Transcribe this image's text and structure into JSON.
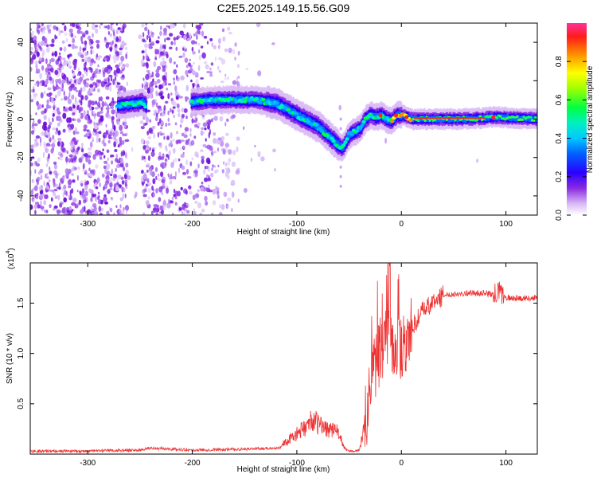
{
  "title": "C2E5.2025.149.15.56.G09",
  "colors": {
    "snr_line": "#ee3333",
    "axis": "#000000"
  },
  "chart_data": [
    {
      "type": "heatmap",
      "xlabel": "Height of straight line (km)",
      "ylabel": "Frequency (Hz)",
      "xlim": [
        -355,
        130
      ],
      "ylim": [
        -50,
        50
      ],
      "x_ticks": [
        -300,
        -200,
        -100,
        0,
        100
      ],
      "x_tick_labels": [
        "-300",
        "-200",
        "-100",
        "0",
        "100"
      ],
      "y_ticks": [
        -40,
        -20,
        0,
        20,
        40
      ],
      "y_tick_labels": [
        "-40",
        "-20",
        "0",
        "20",
        "40"
      ],
      "colorbar": {
        "label": "Normalized spectral amplitude",
        "range": [
          0.0,
          1.0
        ],
        "ticks": [
          0.0,
          0.2,
          0.4,
          0.6,
          0.8
        ],
        "tick_labels": [
          "0.0",
          "0.2",
          "0.4",
          "0.6",
          "0.8"
        ]
      },
      "ridge": {
        "x": [
          -272,
          -255,
          -248,
          -242,
          -200,
          -180,
          -160,
          -140,
          -120,
          -100,
          -80,
          -70,
          -60,
          -57,
          -50,
          -40,
          -35,
          -30,
          -25,
          -20,
          -15,
          -10,
          -5,
          0,
          10,
          30,
          60,
          90,
          130
        ],
        "y": [
          7,
          8,
          9,
          5,
          9,
          10,
          10,
          10,
          8,
          2,
          -4,
          -9,
          -14,
          -15,
          -8,
          -5,
          0,
          2,
          1,
          2,
          0,
          -1,
          2,
          2,
          0,
          0,
          0,
          1,
          0
        ]
      }
    },
    {
      "type": "line",
      "xlabel": "Height of straight line (km)",
      "ylabel": "SNR (10 * v/v)",
      "scale_label": "(x10",
      "scale_exp": "4",
      "xlim": [
        -355,
        130
      ],
      "ylim": [
        0,
        1.9
      ],
      "x_ticks": [
        -300,
        -200,
        -100,
        0,
        100
      ],
      "x_tick_labels": [
        "-300",
        "-200",
        "-100",
        "0",
        "100"
      ],
      "y_ticks": [
        0.5,
        1.0,
        1.5
      ],
      "y_tick_labels": [
        "0.5",
        "1.0",
        "1.5"
      ],
      "series": [
        {
          "x": [
            -355,
            -300,
            -250,
            -240,
            -200,
            -150,
            -120,
            -110,
            -100,
            -90,
            -85,
            -80,
            -70,
            -60,
            -55,
            -50,
            -45,
            -40,
            -35,
            -30,
            -25,
            -20,
            -15,
            -10,
            -5,
            0,
            10,
            20,
            30,
            40,
            60,
            80,
            90,
            95,
            100,
            110,
            130
          ],
          "y": [
            0.03,
            0.03,
            0.04,
            0.06,
            0.04,
            0.05,
            0.06,
            0.12,
            0.2,
            0.28,
            0.35,
            0.3,
            0.25,
            0.22,
            0.06,
            0.03,
            0.03,
            0.04,
            0.3,
            0.65,
            0.9,
            1.05,
            1.15,
            1.05,
            1.0,
            1.0,
            1.25,
            1.42,
            1.5,
            1.58,
            1.6,
            1.6,
            1.58,
            1.62,
            1.55,
            1.55,
            1.55
          ]
        }
      ]
    }
  ]
}
